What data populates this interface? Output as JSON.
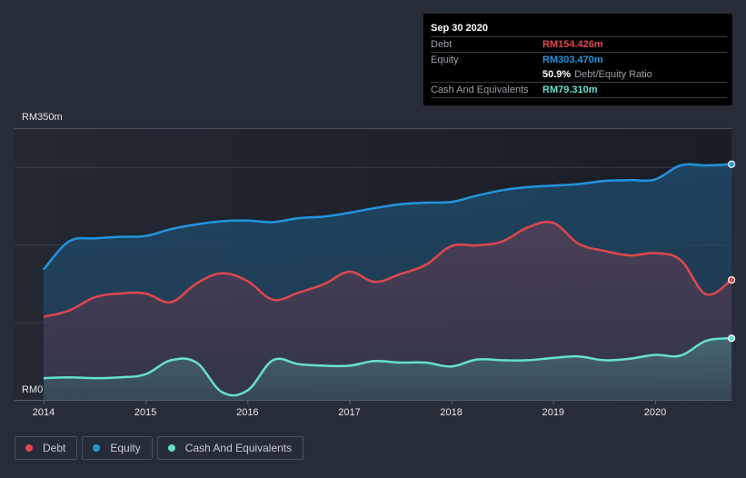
{
  "tooltip": {
    "date": "Sep 30 2020",
    "rows": [
      {
        "label": "Debt",
        "value": "RM154.426m",
        "color": "#e0474c"
      },
      {
        "label": "Equity",
        "value": "RM303.470m",
        "color": "#2394df"
      },
      {
        "ratio_value": "50.9%",
        "ratio_label": "Debt/Equity Ratio"
      },
      {
        "label": "Cash And Equivalents",
        "value": "RM79.310m",
        "color": "#66e0cf"
      }
    ]
  },
  "legend": [
    {
      "label": "Debt",
      "color": "#e0474c"
    },
    {
      "label": "Equity",
      "color": "#2394df"
    },
    {
      "label": "Cash And Equivalents",
      "color": "#66e0cf"
    }
  ],
  "chart_data": {
    "type": "area",
    "title": "",
    "xlabel": "",
    "ylabel": "",
    "y_top_label": "RM350m",
    "y_bottom_label": "RM0",
    "ylim": [
      0,
      350
    ],
    "xlim": [
      2013.85,
      2020.85
    ],
    "x_ticks": [
      "2014",
      "2015",
      "2016",
      "2017",
      "2018",
      "2019",
      "2020"
    ],
    "x_tick_values": [
      2014,
      2015,
      2016,
      2017,
      2018,
      2019,
      2020
    ],
    "grid_values": [
      100,
      200,
      300,
      350
    ],
    "grid": true,
    "legend_position": "bottom-left",
    "units": "RM millions",
    "x": [
      2014.0,
      2014.25,
      2014.5,
      2014.75,
      2015.0,
      2015.25,
      2015.5,
      2015.75,
      2016.0,
      2016.25,
      2016.5,
      2016.75,
      2017.0,
      2017.25,
      2017.5,
      2017.75,
      2018.0,
      2018.25,
      2018.5,
      2018.75,
      2019.0,
      2019.25,
      2019.5,
      2019.75,
      2020.0,
      2020.25,
      2020.5,
      2020.75
    ],
    "series": [
      {
        "name": "Equity",
        "color": "#2394df",
        "values": [
          168,
          204,
          208,
          210,
          211,
          220,
          226,
          230,
          231,
          229,
          234,
          236,
          241,
          247,
          252,
          254,
          255,
          263,
          270,
          274,
          276,
          278,
          282,
          283,
          284,
          302,
          302,
          303.47
        ]
      },
      {
        "name": "Debt",
        "color": "#e0474c",
        "values": [
          107,
          115,
          132,
          137,
          137,
          126,
          150,
          163,
          153,
          129,
          138,
          149,
          165,
          152,
          162,
          174,
          198,
          199,
          204,
          222,
          228,
          201,
          192,
          186,
          189,
          180,
          136,
          154.426
        ]
      },
      {
        "name": "Cash And Equivalents",
        "color": "#66e0cf",
        "values": [
          28,
          29,
          28,
          29,
          33,
          51,
          48,
          10,
          12,
          51,
          46,
          44,
          44,
          50,
          48,
          48,
          43,
          52,
          51,
          51,
          54,
          56,
          51,
          53,
          58,
          57,
          76,
          79.31
        ]
      }
    ]
  }
}
